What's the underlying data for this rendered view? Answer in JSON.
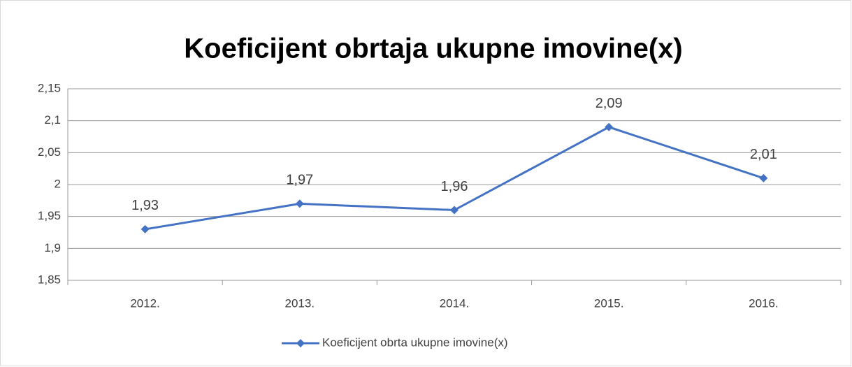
{
  "chart_data": {
    "type": "line",
    "title": "Koeficijent obrtaja ukupne imovine(x)",
    "categories": [
      "2012.",
      "2013.",
      "2014.",
      "2015.",
      "2016."
    ],
    "series": [
      {
        "name": "Koeficijent obrta ukupne imovine(x)",
        "color": "#4472c4",
        "values": [
          1.93,
          1.97,
          1.96,
          2.09,
          2.01
        ],
        "value_labels": [
          "1,93",
          "1,97",
          "1,96",
          "2,09",
          "2,01"
        ]
      }
    ],
    "ylim": [
      1.85,
      2.15
    ],
    "yticks": [
      {
        "value": 1.85,
        "label": "1,85"
      },
      {
        "value": 1.9,
        "label": "1,9"
      },
      {
        "value": 1.95,
        "label": "1,95"
      },
      2,
      {
        "value": 2.05,
        "label": "2,05"
      },
      {
        "value": 2.1,
        "label": "2,1"
      },
      {
        "value": 2.15,
        "label": "2,15"
      }
    ],
    "grid": true,
    "legend": "bottom"
  }
}
